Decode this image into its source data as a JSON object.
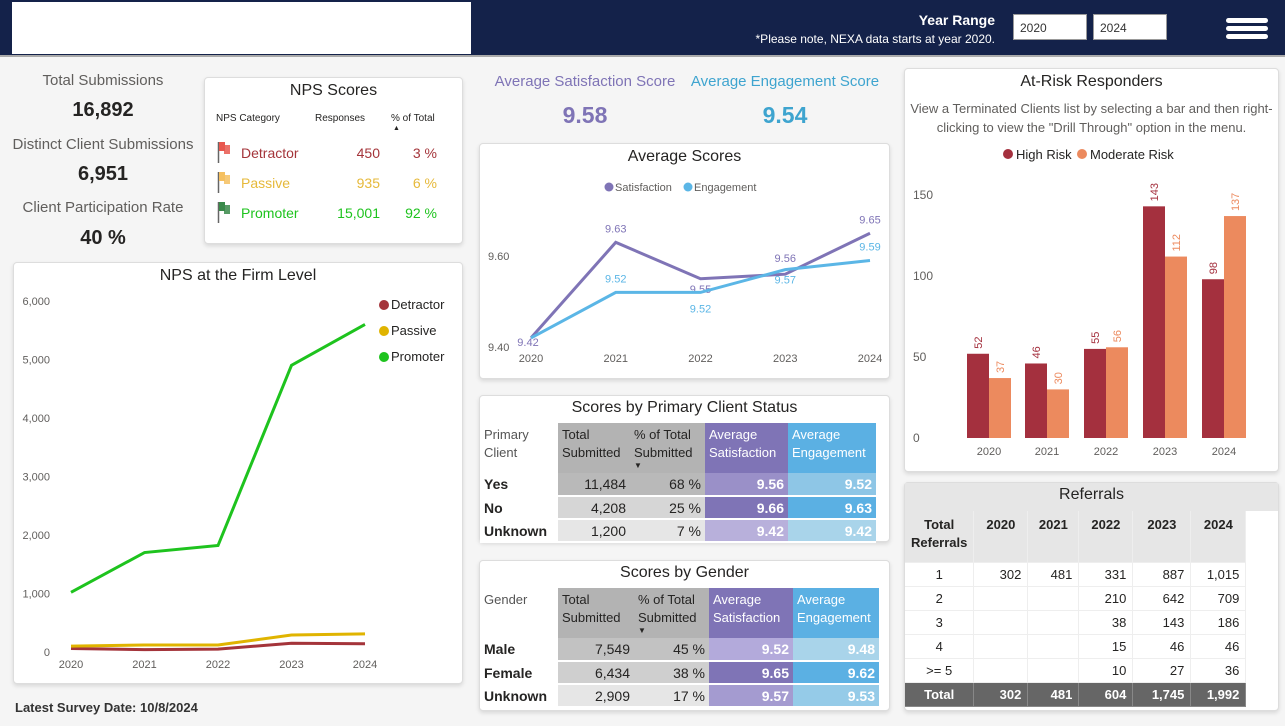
{
  "header": {
    "year_range_label": "Year Range",
    "note": "*Please note, NEXA data starts at year 2020.",
    "year_from": "2020",
    "year_to": "2024",
    "menu_icon": "hamburger-menu-icon",
    "background": "#14224a"
  },
  "kpis": [
    {
      "label": "Total Submissions",
      "value": "16,892"
    },
    {
      "label": "Distinct Client Submissions",
      "value": "6,951"
    },
    {
      "label": "Client Participation Rate",
      "value": "40 %"
    }
  ],
  "nps_scores": {
    "title": "NPS Scores",
    "headers": [
      "NPS Category",
      "Responses",
      "% of Total"
    ],
    "rows": [
      {
        "category": "Detractor",
        "responses": "450",
        "pct": "3 %",
        "color": "#a4343a",
        "flag": "#e8584f"
      },
      {
        "category": "Passive",
        "responses": "935",
        "pct": "6 %",
        "color": "#e6b93a",
        "flag": "#f5c060"
      },
      {
        "category": "Promoter",
        "responses": "15,001",
        "pct": "92 %",
        "color": "#1ec31e",
        "flag": "#3a8a4a"
      }
    ]
  },
  "latest_survey": "Latest Survey Date: 10/8/2024",
  "avg_satisfaction": {
    "label": "Average Satisfaction Score",
    "value": "9.58",
    "color": "#7f74b6"
  },
  "avg_engagement": {
    "label": "Average Engagement Score",
    "value": "9.54",
    "color": "#3ea4cf"
  },
  "primary_table": {
    "title": "Scores by Primary Client Status",
    "headers": [
      "Primary Client",
      "Total Submitted",
      "% of Total Submitted",
      "Average Satisfaction",
      "Average Engagement"
    ],
    "rows": [
      [
        "Yes",
        "11,484",
        "68 %",
        "9.56",
        "9.52"
      ],
      [
        "No",
        "4,208",
        "25 %",
        "9.66",
        "9.63"
      ],
      [
        "Unknown",
        "1,200",
        "7 %",
        "9.42",
        "9.42"
      ]
    ]
  },
  "gender_table": {
    "title": "Scores by Gender",
    "headers": [
      "Gender",
      "Total Submitted",
      "% of Total Submitted",
      "Average Satisfaction",
      "Average Engagement"
    ],
    "rows": [
      [
        "Male",
        "7,549",
        "45 %",
        "9.52",
        "9.48"
      ],
      [
        "Female",
        "6,434",
        "38 %",
        "9.65",
        "9.62"
      ],
      [
        "Unknown",
        "2,909",
        "17 %",
        "9.57",
        "9.53"
      ]
    ]
  },
  "referrals": {
    "title": "Referrals",
    "headers": [
      "Total Referrals",
      "2020",
      "2021",
      "2022",
      "2023",
      "2024"
    ],
    "rows": [
      [
        "1",
        "302",
        "481",
        "331",
        "887",
        "1,015"
      ],
      [
        "2",
        "",
        "",
        "210",
        "642",
        "709"
      ],
      [
        "3",
        "",
        "",
        "38",
        "143",
        "186"
      ],
      [
        "4",
        "",
        "",
        "15",
        "46",
        "46"
      ],
      [
        ">= 5",
        "",
        "",
        "10",
        "27",
        "36"
      ]
    ],
    "total": [
      "Total",
      "302",
      "481",
      "604",
      "1,745",
      "1,992"
    ]
  },
  "chart_data": [
    {
      "id": "nps",
      "type": "line",
      "title": "NPS at the Firm Level",
      "x": [
        "2020",
        "2021",
        "2022",
        "2023",
        "2024"
      ],
      "ylim": [
        0,
        6000
      ],
      "yticks": [
        "0",
        "1,000",
        "2,000",
        "3,000",
        "4,000",
        "5,000",
        "6,000"
      ],
      "legend": "top-right",
      "series": [
        {
          "name": "Detractor",
          "color": "#a4343a",
          "values": [
            60,
            40,
            50,
            150,
            140
          ]
        },
        {
          "name": "Passive",
          "color": "#e0b400",
          "values": [
            100,
            120,
            120,
            290,
            310
          ]
        },
        {
          "name": "Promoter",
          "color": "#1ec31e",
          "values": [
            1020,
            1700,
            1820,
            4900,
            5600
          ]
        }
      ]
    },
    {
      "id": "avg",
      "type": "line",
      "title": "Average Scores",
      "x": [
        "2020",
        "2021",
        "2022",
        "2023",
        "2024"
      ],
      "ylim": [
        9.4,
        9.7
      ],
      "yticks": [
        "9.40",
        "9.60"
      ],
      "legend": "top",
      "series": [
        {
          "name": "Satisfaction",
          "color": "#7f74b6",
          "values": [
            9.42,
            9.63,
            9.55,
            9.56,
            9.65
          ]
        },
        {
          "name": "Engagement",
          "color": "#5bb6e6",
          "values": [
            9.42,
            9.52,
            9.52,
            9.57,
            9.59
          ]
        }
      ]
    },
    {
      "id": "risk",
      "type": "bar",
      "title": "At-Risk Responders",
      "subtitle": "View a Terminated Clients list by selecting a bar and then right-clicking to view the \"Drill Through\" option in the menu.",
      "x": [
        "2020",
        "2021",
        "2022",
        "2023",
        "2024"
      ],
      "ylim": [
        0,
        160
      ],
      "yticks": [
        "0",
        "50",
        "100",
        "150"
      ],
      "legend": "top",
      "series": [
        {
          "name": "High Risk",
          "color": "#a4303e",
          "values": [
            52,
            46,
            55,
            143,
            98
          ]
        },
        {
          "name": "Moderate Risk",
          "color": "#ec8a5e",
          "values": [
            37,
            30,
            56,
            112,
            137
          ]
        }
      ]
    }
  ]
}
